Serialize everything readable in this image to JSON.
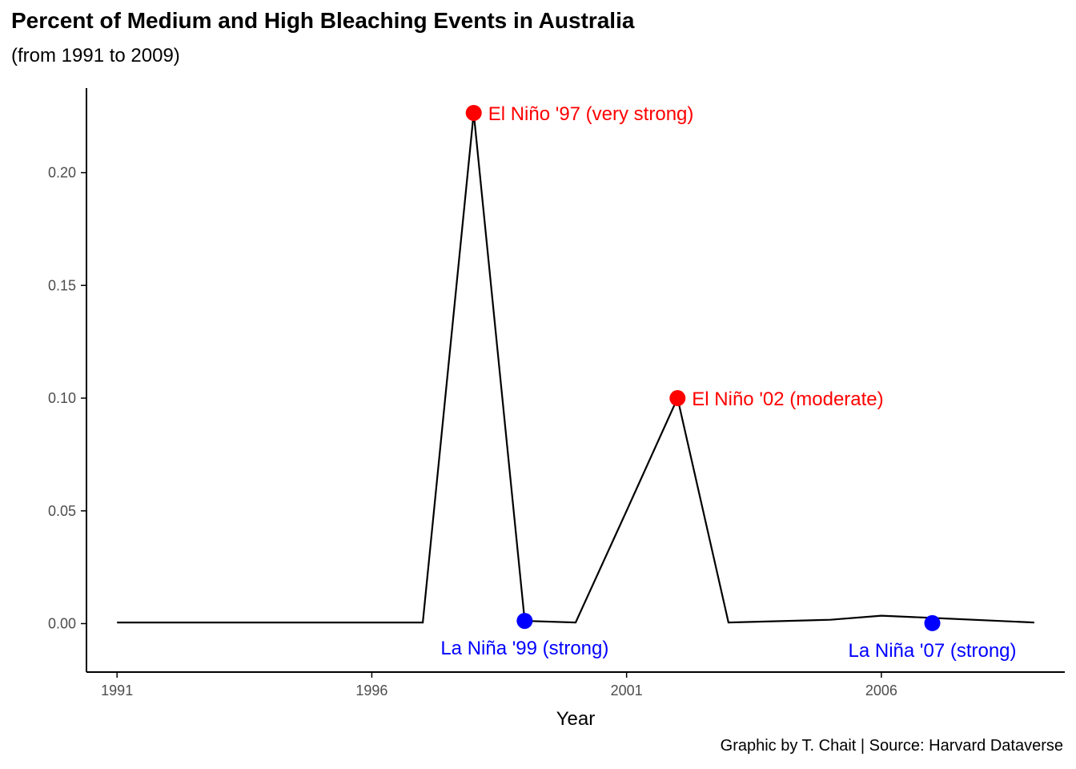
{
  "chart_data": {
    "type": "line",
    "title": "Percent of Medium and High Bleaching Events in Australia",
    "subtitle": "(from 1991 to 2009)",
    "xlabel": "Year",
    "ylabel": "",
    "caption": "Graphic by T. Chait | Source: Harvard Dataverse",
    "xlim": [
      1990.4,
      2009.6
    ],
    "ylim": [
      -0.0215,
      0.2375
    ],
    "x_ticks": [
      1991,
      1996,
      2001,
      2006
    ],
    "x_tick_labels": [
      "1991",
      "1996",
      "2001",
      "2006"
    ],
    "y_ticks": [
      0,
      0.05,
      0.1,
      0.15,
      0.2
    ],
    "y_tick_labels": [
      "0.00",
      "0.05",
      "0.10",
      "0.15",
      "0.20"
    ],
    "grid": false,
    "line_color": "#000000",
    "series": [
      {
        "x": [
          1991,
          1997,
          1998,
          1999,
          2000,
          2001,
          2002,
          2003,
          2005,
          2006,
          2007,
          2009
        ],
        "y": [
          0.0005,
          0.0005,
          0.2265,
          0.0012,
          0.0005,
          0.05,
          0.1,
          0.0005,
          0.0017,
          0.0035,
          0.0025,
          0.0005
        ]
      }
    ],
    "annotations": [
      {
        "x": 1998,
        "y": 0.2265,
        "label": "El Niño '97 (very strong)",
        "color": "#FF0000",
        "position": "right"
      },
      {
        "x": 1999,
        "y": 0.0012,
        "label": "La Niña '99 (strong)",
        "color": "#0000FF",
        "position": "below"
      },
      {
        "x": 2002,
        "y": 0.1,
        "label": "El Niño '02 (moderate)",
        "color": "#FF0000",
        "position": "right"
      },
      {
        "x": 2007,
        "y": 0.0002,
        "label": "La Niña '07 (strong)",
        "color": "#0000FF",
        "position": "below"
      }
    ]
  }
}
